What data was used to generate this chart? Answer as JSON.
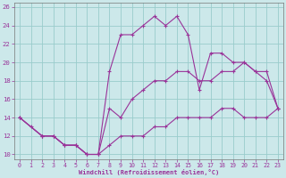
{
  "xlabel": "Windchill (Refroidissement éolien,°C)",
  "bg_color": "#cce8ea",
  "grid_color": "#99cccc",
  "line_color": "#993399",
  "xlim": [
    -0.5,
    23.5
  ],
  "ylim": [
    9.5,
    26.5
  ],
  "xticks": [
    0,
    1,
    2,
    3,
    4,
    5,
    6,
    7,
    8,
    9,
    10,
    11,
    12,
    13,
    14,
    15,
    16,
    17,
    18,
    19,
    20,
    21,
    22,
    23
  ],
  "yticks": [
    10,
    12,
    14,
    16,
    18,
    20,
    22,
    24,
    26
  ],
  "line1_x": [
    0,
    1,
    2,
    3,
    4,
    5,
    6,
    7,
    8,
    9,
    10,
    11,
    12,
    13,
    14,
    15,
    16,
    17,
    18,
    19,
    20,
    21,
    22,
    23
  ],
  "line1_y": [
    14,
    13,
    12,
    12,
    11,
    11,
    10,
    10,
    19,
    23,
    23,
    24,
    25,
    24,
    25,
    23,
    17,
    21,
    21,
    20,
    20,
    19,
    18,
    15
  ],
  "line2_x": [
    0,
    2,
    3,
    4,
    5,
    6,
    7,
    8,
    9,
    10,
    11,
    12,
    13,
    14,
    15,
    16,
    17,
    18,
    19,
    20,
    21,
    22,
    23
  ],
  "line2_y": [
    14,
    12,
    12,
    11,
    11,
    10,
    10,
    15,
    14,
    16,
    17,
    18,
    18,
    19,
    19,
    18,
    18,
    19,
    19,
    20,
    19,
    19,
    15
  ],
  "line3_x": [
    0,
    2,
    3,
    4,
    5,
    6,
    7,
    8,
    9,
    10,
    11,
    12,
    13,
    14,
    15,
    16,
    17,
    18,
    19,
    20,
    21,
    22,
    23
  ],
  "line3_y": [
    14,
    12,
    12,
    11,
    11,
    10,
    10,
    11,
    12,
    12,
    12,
    13,
    13,
    14,
    14,
    14,
    14,
    15,
    15,
    14,
    14,
    14,
    15
  ]
}
